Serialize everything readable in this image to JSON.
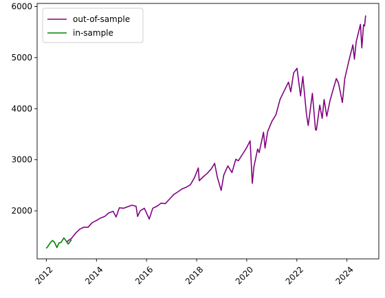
{
  "chart_data": {
    "type": "line",
    "title": "",
    "xlabel": "",
    "ylabel": "",
    "xlim": [
      "2011-08-20",
      "2025-04-10"
    ],
    "ylim": [
      1060,
      6060
    ],
    "x_ticks": [
      "2012",
      "2014",
      "2016",
      "2018",
      "2020",
      "2022",
      "2024"
    ],
    "x_tick_values": [
      "2012-01-01",
      "2014-01-01",
      "2016-01-01",
      "2018-01-01",
      "2020-01-01",
      "2022-01-01",
      "2024-01-01"
    ],
    "y_ticks": [
      "2000",
      "3000",
      "4000",
      "5000",
      "6000"
    ],
    "y_tick_values": [
      2000,
      3000,
      4000,
      5000,
      6000
    ],
    "legend_position": "upper-left",
    "grid": false,
    "series": [
      {
        "name": "out-of-sample",
        "color": "#800080",
        "x": [
          "2012-11-01",
          "2013-01-01",
          "2013-03-01",
          "2013-05-01",
          "2013-07-01",
          "2013-09-01",
          "2013-11-01",
          "2014-01-01",
          "2014-03-01",
          "2014-05-01",
          "2014-07-01",
          "2014-09-01",
          "2014-10-15",
          "2014-12-01",
          "2015-02-01",
          "2015-04-01",
          "2015-06-01",
          "2015-08-01",
          "2015-08-25",
          "2015-10-01",
          "2015-12-01",
          "2016-02-10",
          "2016-04-01",
          "2016-06-01",
          "2016-08-01",
          "2016-10-01",
          "2016-12-01",
          "2017-02-01",
          "2017-04-01",
          "2017-06-01",
          "2017-08-01",
          "2017-10-01",
          "2017-12-01",
          "2018-01-26",
          "2018-02-08",
          "2018-04-01",
          "2018-06-01",
          "2018-08-01",
          "2018-09-20",
          "2018-10-29",
          "2018-12-24",
          "2019-02-01",
          "2019-04-01",
          "2019-05-31",
          "2019-07-26",
          "2019-09-01",
          "2019-11-01",
          "2020-01-01",
          "2020-02-19",
          "2020-03-23",
          "2020-04-15",
          "2020-06-08",
          "2020-07-01",
          "2020-09-02",
          "2020-09-24",
          "2020-11-01",
          "2021-01-01",
          "2021-03-01",
          "2021-05-01",
          "2021-07-01",
          "2021-09-01",
          "2021-10-04",
          "2021-11-15",
          "2022-01-03",
          "2022-02-24",
          "2022-03-29",
          "2022-05-20",
          "2022-06-16",
          "2022-08-16",
          "2022-09-30",
          "2022-10-13",
          "2022-12-01",
          "2023-01-05",
          "2023-02-02",
          "2023-03-13",
          "2023-05-01",
          "2023-07-31",
          "2023-09-01",
          "2023-10-27",
          "2023-12-01",
          "2024-01-01",
          "2024-02-01",
          "2024-03-28",
          "2024-04-19",
          "2024-05-15",
          "2024-07-16",
          "2024-08-05",
          "2024-08-30",
          "2024-09-15",
          "2024-09-30"
        ],
        "y": [
          1400,
          1460,
          1560,
          1640,
          1680,
          1680,
          1770,
          1810,
          1860,
          1890,
          1960,
          1990,
          1880,
          2060,
          2050,
          2080,
          2110,
          2090,
          1890,
          2000,
          2050,
          1840,
          2050,
          2090,
          2150,
          2140,
          2230,
          2320,
          2370,
          2430,
          2460,
          2510,
          2650,
          2840,
          2590,
          2660,
          2730,
          2820,
          2930,
          2660,
          2400,
          2700,
          2880,
          2750,
          3010,
          2980,
          3110,
          3240,
          3370,
          2540,
          2860,
          3210,
          3140,
          3540,
          3230,
          3550,
          3750,
          3880,
          4180,
          4350,
          4520,
          4330,
          4700,
          4790,
          4250,
          4630,
          3900,
          3670,
          4300,
          3590,
          3580,
          4070,
          3810,
          4180,
          3850,
          4170,
          4590,
          4500,
          4120,
          4590,
          4770,
          4950,
          5250,
          4970,
          5310,
          5650,
          5190,
          5640,
          5620,
          5820
        ]
      },
      {
        "name": "in-sample",
        "color": "#008000",
        "x": [
          "2012-01-03",
          "2012-02-01",
          "2012-03-01",
          "2012-04-02",
          "2012-05-01",
          "2012-06-04",
          "2012-07-02",
          "2012-08-01",
          "2012-09-14",
          "2012-10-01",
          "2012-11-15",
          "2012-12-31"
        ],
        "y": [
          1270,
          1320,
          1380,
          1420,
          1380,
          1280,
          1370,
          1380,
          1470,
          1440,
          1350,
          1430
        ]
      }
    ]
  }
}
